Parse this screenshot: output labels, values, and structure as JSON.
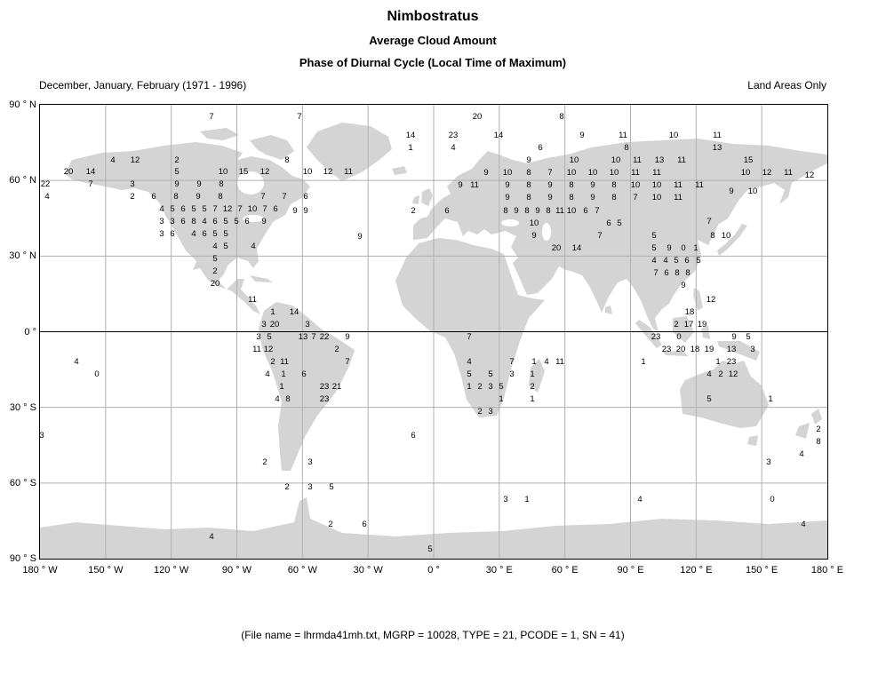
{
  "title": "Nimbostratus",
  "subtitle1": "Average Cloud Amount",
  "subtitle2": "Phase of Diurnal Cycle (Local Time of Maximum)",
  "period_label": "December, January, February (1971 - 1996)",
  "coverage_label": "Land Areas Only",
  "footer": "(File name = lhrmda41mh.txt, MGRP = 10028, TYPE = 21, PCODE = 1, SN = 41)",
  "colors": {
    "background": "#ffffff",
    "land": "#d4d4d4",
    "grid": "#b0b0b0",
    "equator": "#000000",
    "axis_border": "#000000",
    "text": "#000000"
  },
  "chart_data": {
    "type": "scatter",
    "title": "Nimbostratus - Average Cloud Amount - Phase of Diurnal Cycle (Local Time of Maximum)",
    "value_meaning": "local time of day (hour, 0-23) of maximum nimbostratus amount, plotted at station locations over land",
    "projection": "equirectangular world map",
    "grid": true,
    "grid_spacing_deg": 30,
    "x_axis": {
      "label": "Longitude",
      "range_deg": [
        -180,
        180
      ],
      "tick_labels": [
        "180 ° W",
        "150 ° W",
        "120 ° W",
        "90 ° W",
        "60 ° W",
        "30 ° W",
        "0 °",
        "30 ° E",
        "60 ° E",
        "90 ° E",
        "120 ° E",
        "150 ° E",
        "180 ° E"
      ]
    },
    "y_axis": {
      "label": "Latitude",
      "range_deg": [
        -90,
        90
      ],
      "tick_labels": [
        "90 ° N",
        "60 ° N",
        "30 ° N",
        "0 °",
        "30 ° S",
        "60 ° S",
        "90 ° S"
      ]
    },
    "coords_note": "points are [value, x, y] in page pixels of the 997x760 screenshot; plot box spans x 44-930 (180W-180E), y 117-628 (90N-90S)",
    "points": [
      [
        7,
        237,
        131
      ],
      [
        7,
        336,
        131
      ],
      [
        20,
        536,
        131
      ],
      [
        8,
        631,
        131
      ],
      [
        14,
        461,
        152
      ],
      [
        23,
        509,
        152
      ],
      [
        14,
        560,
        152
      ],
      [
        9,
        654,
        152
      ],
      [
        11,
        700,
        152
      ],
      [
        10,
        757,
        152
      ],
      [
        11,
        806,
        152
      ],
      [
        1,
        461,
        166
      ],
      [
        4,
        509,
        166
      ],
      [
        6,
        607,
        166
      ],
      [
        8,
        704,
        166
      ],
      [
        13,
        806,
        166
      ],
      [
        4,
        126,
        180
      ],
      [
        12,
        151,
        180
      ],
      [
        2,
        198,
        180
      ],
      [
        8,
        322,
        180
      ],
      [
        20,
        76,
        193
      ],
      [
        14,
        101,
        193
      ],
      [
        5,
        198,
        193
      ],
      [
        10,
        250,
        193
      ],
      [
        15,
        273,
        193
      ],
      [
        12,
        297,
        193
      ],
      [
        10,
        345,
        193
      ],
      [
        12,
        368,
        193
      ],
      [
        11,
        391,
        193
      ],
      [
        22,
        50,
        207
      ],
      [
        7,
        101,
        207
      ],
      [
        3,
        148,
        207
      ],
      [
        9,
        198,
        207
      ],
      [
        9,
        223,
        207
      ],
      [
        8,
        248,
        207
      ],
      [
        4,
        52,
        221
      ],
      [
        2,
        148,
        221
      ],
      [
        6,
        172,
        221
      ],
      [
        8,
        197,
        221
      ],
      [
        9,
        222,
        221
      ],
      [
        8,
        247,
        221
      ],
      [
        7,
        295,
        221
      ],
      [
        7,
        319,
        221
      ],
      [
        6,
        343,
        221
      ],
      [
        4,
        181,
        235
      ],
      [
        5,
        193,
        235
      ],
      [
        6,
        205,
        235
      ],
      [
        5,
        217,
        235
      ],
      [
        5,
        229,
        235
      ],
      [
        7,
        241,
        235
      ],
      [
        12,
        255,
        235
      ],
      [
        7,
        269,
        235
      ],
      [
        10,
        283,
        235
      ],
      [
        7,
        297,
        235
      ],
      [
        6,
        309,
        235
      ],
      [
        9,
        331,
        237
      ],
      [
        9,
        343,
        237
      ],
      [
        3,
        181,
        249
      ],
      [
        3,
        193,
        249
      ],
      [
        6,
        205,
        249
      ],
      [
        8,
        217,
        249
      ],
      [
        4,
        229,
        249
      ],
      [
        6,
        241,
        249
      ],
      [
        5,
        253,
        249
      ],
      [
        5,
        265,
        249
      ],
      [
        6,
        277,
        249
      ],
      [
        9,
        296,
        249
      ],
      [
        3,
        181,
        263
      ],
      [
        6,
        193,
        263
      ],
      [
        4,
        217,
        263
      ],
      [
        6,
        229,
        263
      ],
      [
        5,
        241,
        263
      ],
      [
        5,
        253,
        263
      ],
      [
        4,
        241,
        277
      ],
      [
        5,
        253,
        277
      ],
      [
        4,
        284,
        277
      ],
      [
        5,
        241,
        291
      ],
      [
        2,
        241,
        305
      ],
      [
        20,
        241,
        319
      ],
      [
        9,
        404,
        266
      ],
      [
        11,
        283,
        337
      ],
      [
        1,
        306,
        351
      ],
      [
        14,
        330,
        351
      ],
      [
        3,
        296,
        365
      ],
      [
        20,
        308,
        365
      ],
      [
        3,
        345,
        365
      ],
      [
        3,
        290,
        379
      ],
      [
        5,
        302,
        379
      ],
      [
        13,
        340,
        379
      ],
      [
        7,
        352,
        379
      ],
      [
        22,
        364,
        379
      ],
      [
        9,
        390,
        379
      ],
      [
        11,
        288,
        393
      ],
      [
        12,
        301,
        393
      ],
      [
        2,
        378,
        393
      ],
      [
        4,
        85,
        407
      ],
      [
        2,
        306,
        407
      ],
      [
        11,
        319,
        407
      ],
      [
        7,
        390,
        407
      ],
      [
        0,
        108,
        421
      ],
      [
        4,
        300,
        421
      ],
      [
        1,
        318,
        421
      ],
      [
        6,
        341,
        421
      ],
      [
        1,
        316,
        435
      ],
      [
        23,
        364,
        435
      ],
      [
        21,
        378,
        435
      ],
      [
        4,
        311,
        449
      ],
      [
        8,
        323,
        449
      ],
      [
        23,
        364,
        449
      ],
      [
        3,
        46,
        490
      ],
      [
        2,
        297,
        520
      ],
      [
        3,
        348,
        520
      ],
      [
        2,
        322,
        548
      ],
      [
        3,
        348,
        548
      ],
      [
        5,
        372,
        548
      ],
      [
        9,
        594,
        180
      ],
      [
        10,
        645,
        180
      ],
      [
        10,
        692,
        180
      ],
      [
        11,
        716,
        180
      ],
      [
        13,
        741,
        180
      ],
      [
        11,
        766,
        180
      ],
      [
        15,
        841,
        180
      ],
      [
        9,
        546,
        194
      ],
      [
        10,
        570,
        194
      ],
      [
        8,
        594,
        194
      ],
      [
        7,
        618,
        194
      ],
      [
        10,
        642,
        194
      ],
      [
        10,
        666,
        194
      ],
      [
        10,
        690,
        194
      ],
      [
        11,
        714,
        194
      ],
      [
        11,
        738,
        194
      ],
      [
        10,
        838,
        194
      ],
      [
        12,
        862,
        194
      ],
      [
        11,
        886,
        194
      ],
      [
        12,
        910,
        197
      ],
      [
        9,
        517,
        208
      ],
      [
        11,
        533,
        208
      ],
      [
        9,
        570,
        208
      ],
      [
        8,
        594,
        208
      ],
      [
        9,
        618,
        208
      ],
      [
        8,
        642,
        208
      ],
      [
        9,
        666,
        208
      ],
      [
        8,
        690,
        208
      ],
      [
        10,
        714,
        208
      ],
      [
        10,
        738,
        208
      ],
      [
        11,
        762,
        208
      ],
      [
        11,
        786,
        208
      ],
      [
        9,
        822,
        215
      ],
      [
        10,
        846,
        215
      ],
      [
        9,
        570,
        222
      ],
      [
        8,
        594,
        222
      ],
      [
        9,
        618,
        222
      ],
      [
        8,
        642,
        222
      ],
      [
        9,
        666,
        222
      ],
      [
        8,
        690,
        222
      ],
      [
        7,
        714,
        222
      ],
      [
        10,
        738,
        222
      ],
      [
        11,
        762,
        222
      ],
      [
        2,
        464,
        237
      ],
      [
        6,
        502,
        237
      ],
      [
        8,
        568,
        237
      ],
      [
        9,
        580,
        237
      ],
      [
        8,
        592,
        237
      ],
      [
        9,
        604,
        237
      ],
      [
        8,
        616,
        237
      ],
      [
        11,
        629,
        237
      ],
      [
        10,
        642,
        237
      ],
      [
        6,
        658,
        237
      ],
      [
        7,
        671,
        237
      ],
      [
        10,
        600,
        251
      ],
      [
        6,
        684,
        251
      ],
      [
        5,
        696,
        251
      ],
      [
        7,
        797,
        249
      ],
      [
        9,
        600,
        265
      ],
      [
        7,
        674,
        265
      ],
      [
        5,
        735,
        265
      ],
      [
        8,
        801,
        265
      ],
      [
        10,
        816,
        265
      ],
      [
        20,
        625,
        279
      ],
      [
        14,
        648,
        279
      ],
      [
        5,
        735,
        279
      ],
      [
        9,
        752,
        279
      ],
      [
        0,
        768,
        279
      ],
      [
        1,
        782,
        279
      ],
      [
        4,
        735,
        293
      ],
      [
        4,
        748,
        293
      ],
      [
        5,
        760,
        293
      ],
      [
        6,
        772,
        293
      ],
      [
        5,
        785,
        293
      ],
      [
        7,
        737,
        307
      ],
      [
        6,
        749,
        307
      ],
      [
        8,
        761,
        307
      ],
      [
        8,
        773,
        307
      ],
      [
        9,
        768,
        321
      ],
      [
        7,
        527,
        379
      ],
      [
        4,
        527,
        407
      ],
      [
        7,
        575,
        407
      ],
      [
        1,
        600,
        407
      ],
      [
        4,
        614,
        407
      ],
      [
        11,
        629,
        407
      ],
      [
        5,
        527,
        421
      ],
      [
        5,
        551,
        421
      ],
      [
        3,
        575,
        421
      ],
      [
        1,
        598,
        421
      ],
      [
        1,
        527,
        435
      ],
      [
        2,
        539,
        435
      ],
      [
        3,
        551,
        435
      ],
      [
        5,
        563,
        435
      ],
      [
        2,
        598,
        435
      ],
      [
        1,
        563,
        449
      ],
      [
        1,
        598,
        449
      ],
      [
        2,
        539,
        463
      ],
      [
        3,
        551,
        463
      ],
      [
        6,
        464,
        490
      ],
      [
        12,
        799,
        337
      ],
      [
        18,
        775,
        351
      ],
      [
        2,
        760,
        365
      ],
      [
        17,
        774,
        365
      ],
      [
        19,
        789,
        365
      ],
      [
        23,
        737,
        379
      ],
      [
        0,
        763,
        379
      ],
      [
        9,
        825,
        379
      ],
      [
        5,
        841,
        379
      ],
      [
        23,
        749,
        393
      ],
      [
        20,
        765,
        393
      ],
      [
        18,
        781,
        393
      ],
      [
        19,
        797,
        393
      ],
      [
        13,
        822,
        393
      ],
      [
        3,
        846,
        393
      ],
      [
        1,
        723,
        407
      ],
      [
        1,
        807,
        407
      ],
      [
        23,
        822,
        407
      ],
      [
        4,
        797,
        421
      ],
      [
        2,
        810,
        421
      ],
      [
        12,
        824,
        421
      ],
      [
        5,
        797,
        449
      ],
      [
        1,
        866,
        449
      ],
      [
        2,
        920,
        483
      ],
      [
        8,
        920,
        497
      ],
      [
        4,
        901,
        511
      ],
      [
        3,
        864,
        520
      ],
      [
        3,
        568,
        562
      ],
      [
        1,
        592,
        562
      ],
      [
        4,
        719,
        562
      ],
      [
        0,
        868,
        562
      ],
      [
        2,
        371,
        590
      ],
      [
        6,
        409,
        590
      ],
      [
        4,
        903,
        590
      ],
      [
        4,
        237,
        604
      ],
      [
        5,
        483,
        618
      ]
    ]
  }
}
